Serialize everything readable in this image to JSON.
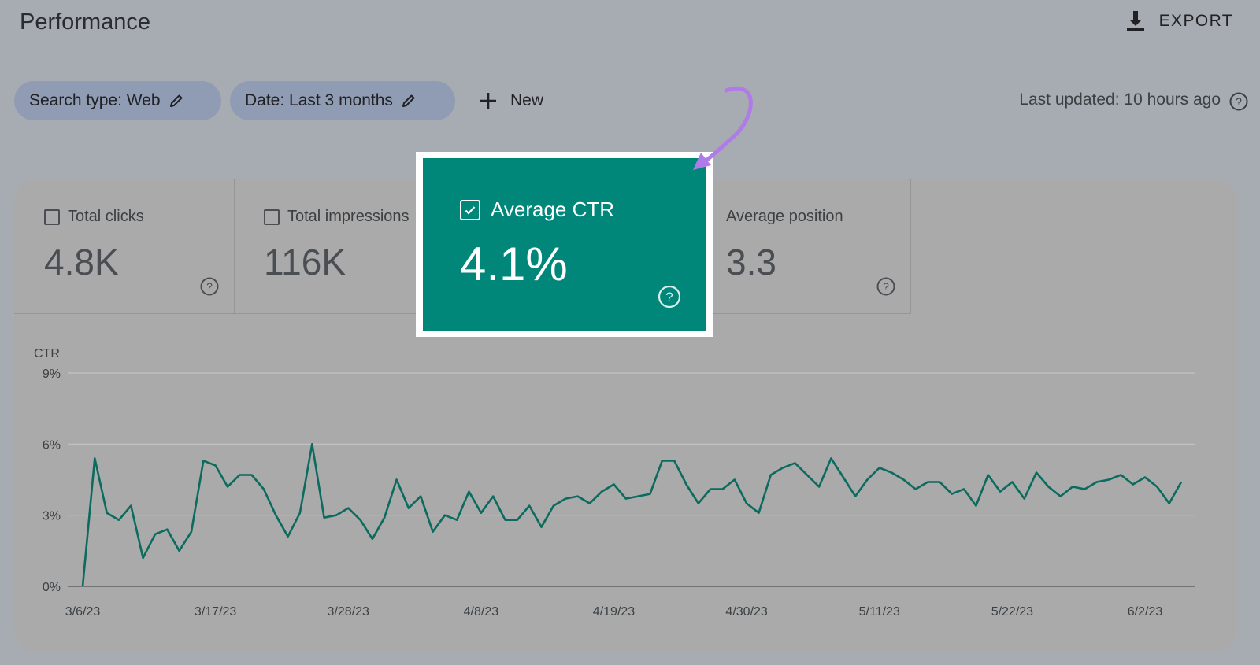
{
  "header": {
    "title": "Performance",
    "export_label": "EXPORT"
  },
  "filters": {
    "search_type": "Search type: Web",
    "date": "Date: Last 3 months",
    "new_label": "New",
    "last_updated": "Last updated: 10 hours ago"
  },
  "metrics": [
    {
      "label": "Total clicks",
      "value": "4.8K",
      "checked": false
    },
    {
      "label": "Total impressions",
      "value": "116K",
      "checked": false
    },
    {
      "label": "Average CTR",
      "value": "4.1%",
      "checked": true
    },
    {
      "label": "Average position",
      "value": "3.3",
      "checked": false
    }
  ],
  "colors": {
    "accent": "#00877a",
    "line": "#0a6b5e",
    "arrow": "#b07be8"
  },
  "chart_data": {
    "type": "line",
    "title": "",
    "ylabel": "CTR",
    "ylim": [
      0,
      9
    ],
    "yticks": [
      "0%",
      "3%",
      "6%",
      "9%"
    ],
    "ytick_values": [
      0,
      3,
      6,
      9
    ],
    "xticks": [
      "3/6/23",
      "3/17/23",
      "3/28/23",
      "4/8/23",
      "4/19/23",
      "4/30/23",
      "5/11/23",
      "5/22/23",
      "6/2/23"
    ],
    "xtick_index": [
      0,
      11,
      22,
      33,
      44,
      55,
      66,
      77,
      88
    ],
    "series": [
      {
        "values": [
          0,
          5.4,
          3.1,
          2.8,
          3.4,
          1.2,
          2.2,
          2.4,
          1.5,
          2.3,
          5.3,
          5.1,
          4.2,
          4.7,
          4.7,
          4.1,
          3.0,
          2.1,
          3.1,
          6.0,
          2.9,
          3.0,
          3.3,
          2.8,
          2.0,
          2.9,
          4.5,
          3.3,
          3.8,
          2.3,
          3.0,
          2.8,
          4.0,
          3.1,
          3.8,
          2.8,
          2.8,
          3.4,
          2.5,
          3.4,
          3.7,
          3.8,
          3.5,
          4.0,
          4.3,
          3.7,
          3.8,
          3.9,
          5.3,
          5.3,
          4.3,
          3.5,
          4.1,
          4.1,
          4.5,
          3.5,
          3.1,
          4.7,
          5.0,
          5.2,
          4.7,
          4.2,
          5.4,
          4.6,
          3.8,
          4.5,
          5.0,
          4.8,
          4.5,
          4.1,
          4.4,
          4.4,
          3.9,
          4.1,
          3.4,
          4.7,
          4.0,
          4.4,
          3.7,
          4.8,
          4.2,
          3.8,
          4.2,
          4.1,
          4.4,
          4.5,
          4.7,
          4.3,
          4.6,
          4.2,
          3.5,
          4.4
        ]
      }
    ]
  }
}
